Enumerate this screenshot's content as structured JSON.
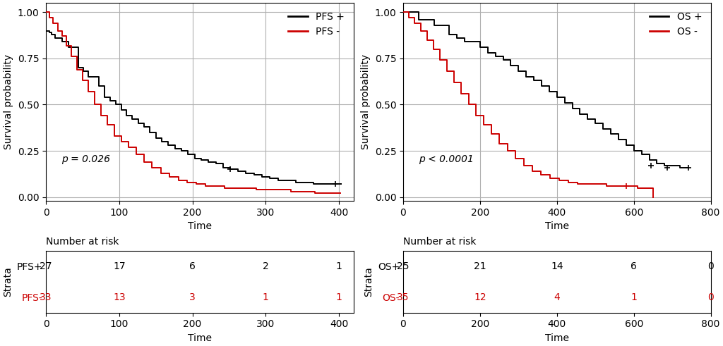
{
  "chart_data": [
    {
      "type": "step",
      "xlabel": "Time",
      "ylabel": "Survival probability",
      "xlim": [
        0,
        420
      ],
      "xticks": [
        0,
        100,
        200,
        300,
        400
      ],
      "ylim": [
        -0.02,
        1.05
      ],
      "yticks": [
        {
          "value": 0.0,
          "label": "0.00"
        },
        {
          "value": 0.25,
          "label": "0.25"
        },
        {
          "value": 0.5,
          "label": "0.50"
        },
        {
          "value": 0.75,
          "label": "0.75"
        },
        {
          "value": 1.0,
          "label": "1.00"
        }
      ],
      "grid": true,
      "legend": "upper right",
      "annotations": [
        "p = 0.026"
      ],
      "series": [
        {
          "name": "PFS +",
          "color": "#000000",
          "x": [
            0,
            5,
            8,
            12,
            17,
            22,
            26,
            31,
            37,
            44,
            51,
            58,
            65,
            72,
            80,
            88,
            95,
            103,
            110,
            118,
            126,
            134,
            142,
            150,
            158,
            167,
            176,
            185,
            194,
            203,
            212,
            222,
            232,
            242,
            252,
            262,
            273,
            284,
            295,
            306,
            317,
            329,
            341,
            353,
            365,
            377,
            390,
            403
          ],
          "values": [
            0.9,
            0.89,
            0.88,
            0.86,
            0.86,
            0.84,
            0.84,
            0.81,
            0.81,
            0.7,
            0.68,
            0.65,
            0.65,
            0.6,
            0.54,
            0.52,
            0.5,
            0.47,
            0.44,
            0.42,
            0.4,
            0.38,
            0.35,
            0.32,
            0.3,
            0.28,
            0.26,
            0.25,
            0.23,
            0.21,
            0.2,
            0.19,
            0.18,
            0.16,
            0.15,
            0.14,
            0.13,
            0.12,
            0.11,
            0.1,
            0.09,
            0.09,
            0.08,
            0.08,
            0.07,
            0.07,
            0.07,
            0.07
          ],
          "censored_x": [
            252,
            395
          ],
          "censored_values": [
            0.15,
            0.07
          ]
        },
        {
          "name": "PFS -",
          "color": "#cc0000",
          "x": [
            0,
            5,
            10,
            16,
            22,
            28,
            35,
            42,
            50,
            58,
            66,
            75,
            84,
            93,
            103,
            113,
            123,
            134,
            145,
            157,
            169,
            181,
            193,
            205,
            218,
            231,
            244,
            258,
            272,
            287,
            302,
            318,
            334,
            350,
            367,
            384,
            402
          ],
          "values": [
            1.0,
            0.97,
            0.94,
            0.9,
            0.87,
            0.82,
            0.76,
            0.69,
            0.63,
            0.57,
            0.5,
            0.44,
            0.39,
            0.33,
            0.3,
            0.27,
            0.23,
            0.19,
            0.16,
            0.13,
            0.11,
            0.09,
            0.08,
            0.07,
            0.06,
            0.06,
            0.05,
            0.05,
            0.05,
            0.04,
            0.04,
            0.04,
            0.03,
            0.03,
            0.02,
            0.02,
            0.02
          ]
        }
      ]
    },
    {
      "type": "step",
      "xlabel": "Time",
      "ylabel": "Survival probability",
      "xlim": [
        0,
        800
      ],
      "xticks": [
        0,
        200,
        400,
        600,
        800
      ],
      "ylim": [
        -0.02,
        1.05
      ],
      "yticks": [
        {
          "value": 0.0,
          "label": "0.00"
        },
        {
          "value": 0.25,
          "label": "0.25"
        },
        {
          "value": 0.5,
          "label": "0.50"
        },
        {
          "value": 0.75,
          "label": "0.75"
        },
        {
          "value": 1.0,
          "label": "1.00"
        }
      ],
      "grid": true,
      "legend": "upper right",
      "annotations": [
        "p < 0.0001"
      ],
      "series": [
        {
          "name": "OS +",
          "color": "#000000",
          "x": [
            0,
            20,
            40,
            60,
            80,
            100,
            120,
            140,
            160,
            180,
            200,
            220,
            240,
            260,
            280,
            300,
            320,
            340,
            360,
            380,
            400,
            420,
            440,
            460,
            480,
            500,
            520,
            540,
            560,
            580,
            600,
            620,
            640,
            660,
            680,
            700,
            720,
            740
          ],
          "values": [
            1.0,
            1.0,
            0.96,
            0.96,
            0.93,
            0.93,
            0.88,
            0.86,
            0.84,
            0.84,
            0.81,
            0.78,
            0.76,
            0.74,
            0.71,
            0.68,
            0.65,
            0.63,
            0.6,
            0.57,
            0.54,
            0.51,
            0.48,
            0.45,
            0.42,
            0.4,
            0.37,
            0.34,
            0.31,
            0.28,
            0.25,
            0.23,
            0.2,
            0.18,
            0.17,
            0.17,
            0.16,
            0.16
          ],
          "censored_x": [
            644,
            686,
            742
          ],
          "censored_values": [
            0.17,
            0.16,
            0.16
          ]
        },
        {
          "name": "OS -",
          "color": "#cc0000",
          "x": [
            0,
            15,
            30,
            46,
            62,
            79,
            96,
            114,
            132,
            151,
            170,
            189,
            209,
            229,
            250,
            271,
            292,
            314,
            336,
            359,
            382,
            405,
            429,
            453,
            478,
            503,
            529,
            555,
            582,
            609,
            637,
            650
          ],
          "values": [
            1.0,
            0.97,
            0.94,
            0.9,
            0.85,
            0.8,
            0.74,
            0.68,
            0.62,
            0.56,
            0.5,
            0.44,
            0.39,
            0.34,
            0.29,
            0.25,
            0.21,
            0.17,
            0.14,
            0.12,
            0.1,
            0.09,
            0.08,
            0.07,
            0.07,
            0.07,
            0.06,
            0.06,
            0.06,
            0.05,
            0.05,
            0.0
          ],
          "censored_x": [
            580
          ],
          "censored_values": [
            0.06
          ]
        }
      ]
    },
    {
      "type": "table",
      "title": "Number at risk",
      "xlabel": "Time",
      "ylabel": "Strata",
      "xlim": [
        0,
        420
      ],
      "xticks": [
        0,
        100,
        200,
        300,
        400
      ],
      "x": [
        0,
        100,
        200,
        300,
        400
      ],
      "series": [
        {
          "name": "PFS+",
          "color": "#000000",
          "values": [
            27,
            17,
            6,
            2,
            1
          ]
        },
        {
          "name": "PFS-",
          "color": "#cc0000",
          "values": [
            33,
            13,
            3,
            1,
            1
          ]
        }
      ]
    },
    {
      "type": "table",
      "title": "Number at risk",
      "xlabel": "Time",
      "ylabel": "Strata",
      "xlim": [
        0,
        800
      ],
      "xticks": [
        0,
        200,
        400,
        600,
        800
      ],
      "x": [
        0,
        200,
        400,
        600,
        800
      ],
      "series": [
        {
          "name": "OS+",
          "color": "#000000",
          "values": [
            25,
            21,
            14,
            6,
            0
          ]
        },
        {
          "name": "OS-",
          "color": "#cc0000",
          "values": [
            35,
            12,
            4,
            1,
            0
          ]
        }
      ]
    }
  ]
}
